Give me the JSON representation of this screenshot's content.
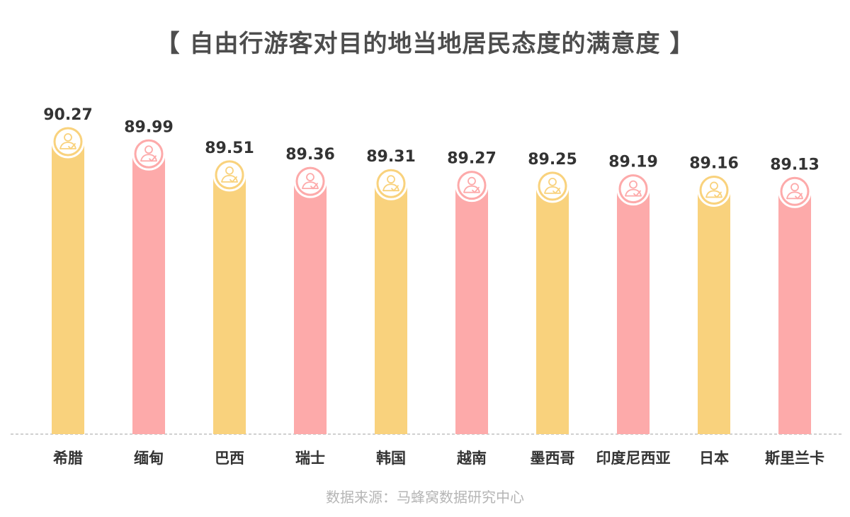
{
  "title": "【 自由行游客对目的地当地居民态度的满意度 】",
  "source": "数据来源：马蜂窝数据研究中心",
  "colors": {
    "yellow": "#f9d27d",
    "pink": "#fdaaaa",
    "text": "#333333",
    "title": "#4d4d4d",
    "source": "#b5b5b5",
    "axis": "#b3b3b3"
  },
  "chart_data": {
    "type": "bar",
    "title": "【 自由行游客对目的地当地居民态度的满意度 】",
    "categories": [
      "希腊",
      "缅甸",
      "巴西",
      "瑞士",
      "韩国",
      "越南",
      "墨西哥",
      "印度尼西亚",
      "日本",
      "斯里兰卡"
    ],
    "values": [
      90.27,
      89.99,
      89.51,
      89.36,
      89.31,
      89.27,
      89.25,
      89.19,
      89.16,
      89.13
    ],
    "value_labels": [
      "90.27",
      "89.99",
      "89.51",
      "89.36",
      "89.31",
      "89.27",
      "89.25",
      "89.19",
      "89.16",
      "89.13"
    ],
    "bar_colors": [
      "yellow",
      "pink",
      "yellow",
      "pink",
      "yellow",
      "pink",
      "yellow",
      "pink",
      "yellow",
      "pink"
    ],
    "icon": "person-check-icon",
    "xlabel": "",
    "ylabel": "",
    "grid": false,
    "data_labels": true
  }
}
